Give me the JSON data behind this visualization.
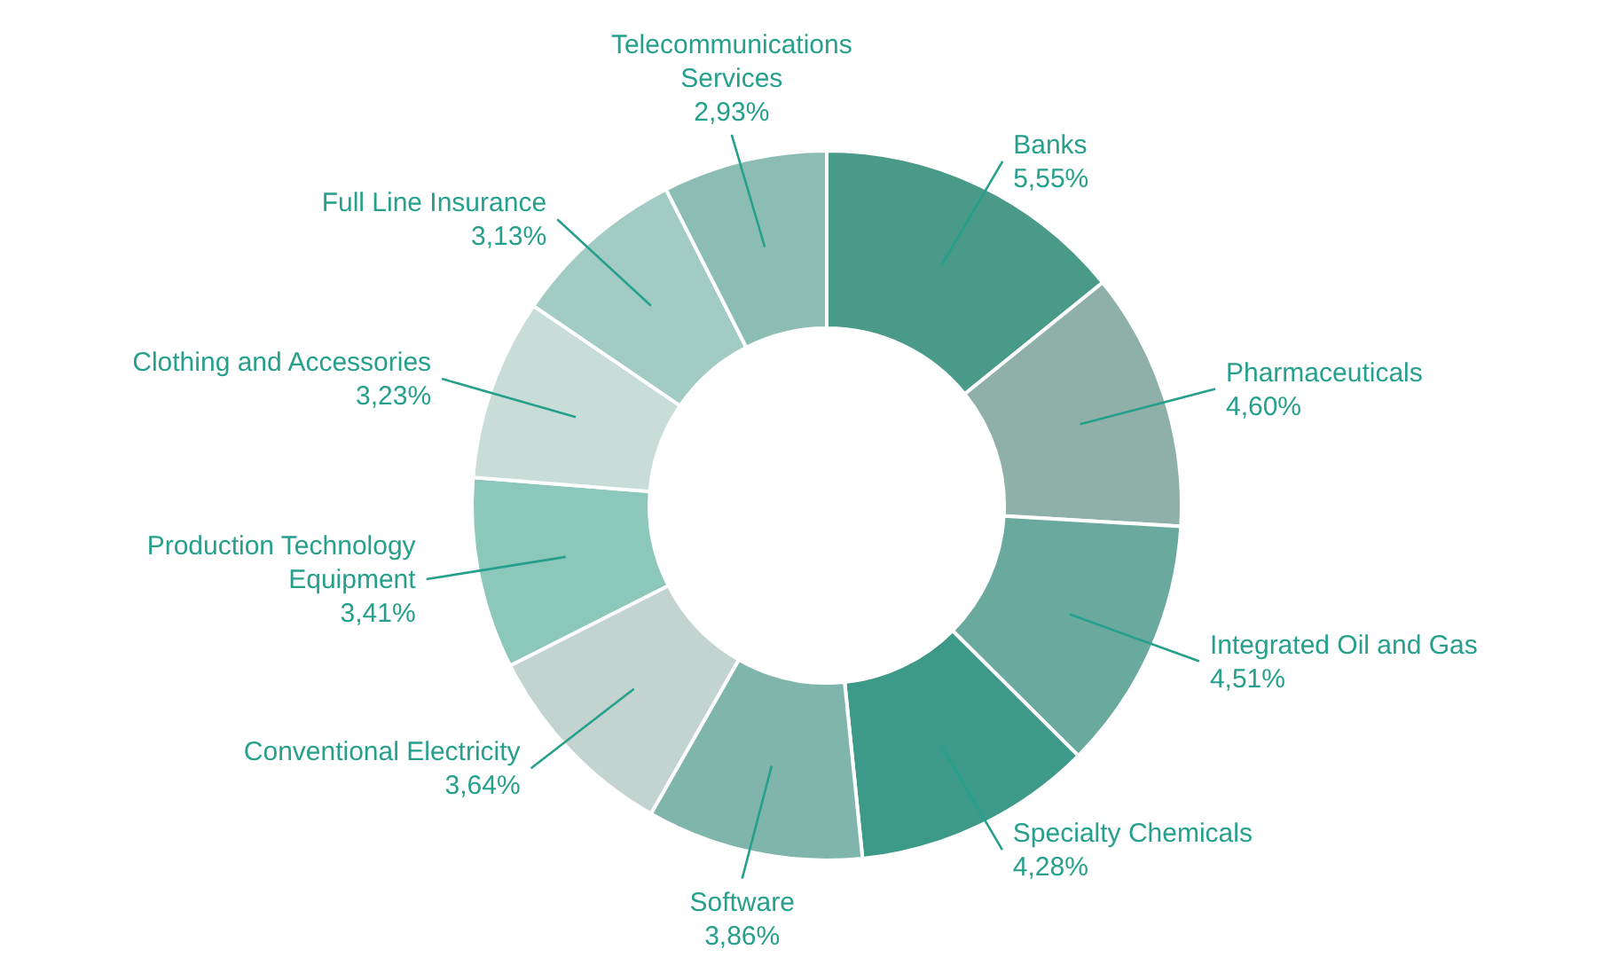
{
  "chart_data": {
    "type": "donut",
    "categories": [
      "Banks",
      "Pharmaceuticals",
      "Integrated Oil and Gas",
      "Specialty Chemicals",
      "Software",
      "Conventional Electricity",
      "Production Technology Equipment",
      "Clothing and Accessories",
      "Full Line Insurance",
      "Telecommunications Services"
    ],
    "values": [
      5.55,
      4.6,
      4.51,
      4.28,
      3.86,
      3.64,
      3.41,
      3.23,
      3.13,
      2.93
    ],
    "value_labels": [
      "5,55%",
      "4,60%",
      "4,51%",
      "4,28%",
      "3,86%",
      "3,64%",
      "3,41%",
      "3,23%",
      "3,13%",
      "2,93%"
    ],
    "colors": [
      "#4a9a8a",
      "#8fb0a8",
      "#6aaa9e",
      "#3d9a88",
      "#7fb5ab",
      "#c2d3d0",
      "#8cc7bb",
      "#c8dcd8",
      "#a2cbc3",
      "#8cbdb3"
    ],
    "legend": false
  }
}
